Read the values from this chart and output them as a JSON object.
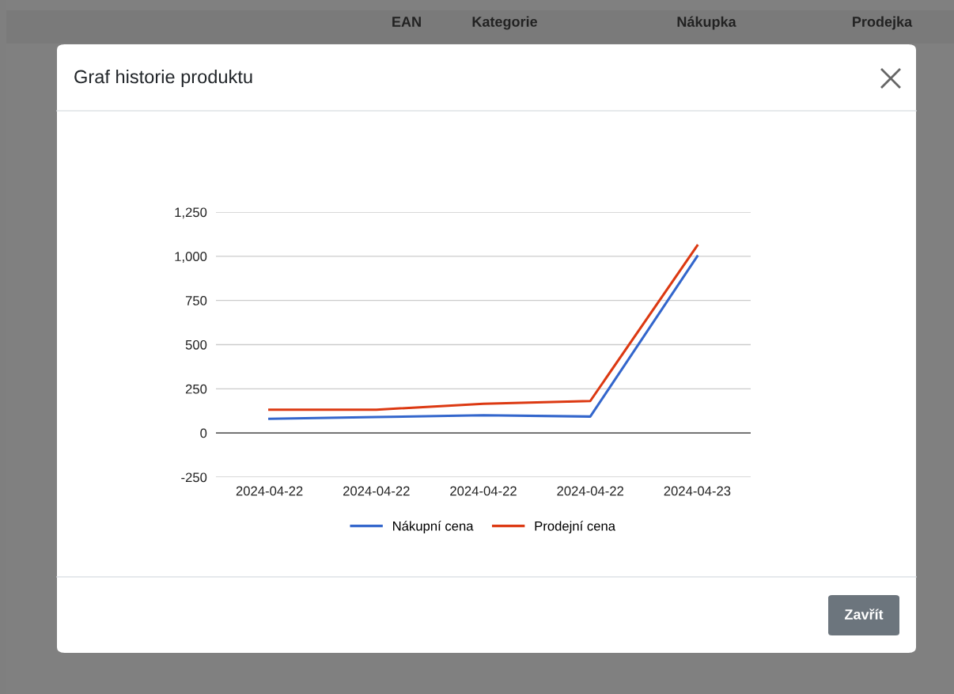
{
  "chart_data": {
    "type": "line",
    "title": "Graf historie produktu",
    "categories": [
      "2024-04-22",
      "2024-04-22",
      "2024-04-22",
      "2024-04-22",
      "2024-04-23"
    ],
    "series": [
      {
        "name": "Nákupní cena",
        "color": "#3366cc",
        "values": [
          80,
          90,
          100,
          93,
          1000
        ]
      },
      {
        "name": "Prodejní cena",
        "color": "#dc3912",
        "values": [
          132,
          132,
          165,
          181,
          1060
        ]
      }
    ],
    "ylim": [
      -250,
      1250
    ],
    "yticks": [
      {
        "value": -250,
        "label": "-250"
      },
      0,
      250,
      500,
      750,
      {
        "value": 1000,
        "label": "1,000"
      },
      {
        "value": 1250,
        "label": "1,250"
      }
    ],
    "grid": "y",
    "legend": "bottom",
    "marker": "none",
    "line_style": "solid",
    "annotations": [
      "Zavřít",
      "EAN",
      "Kategorie",
      "Nákupka",
      "Prodejka"
    ]
  }
}
